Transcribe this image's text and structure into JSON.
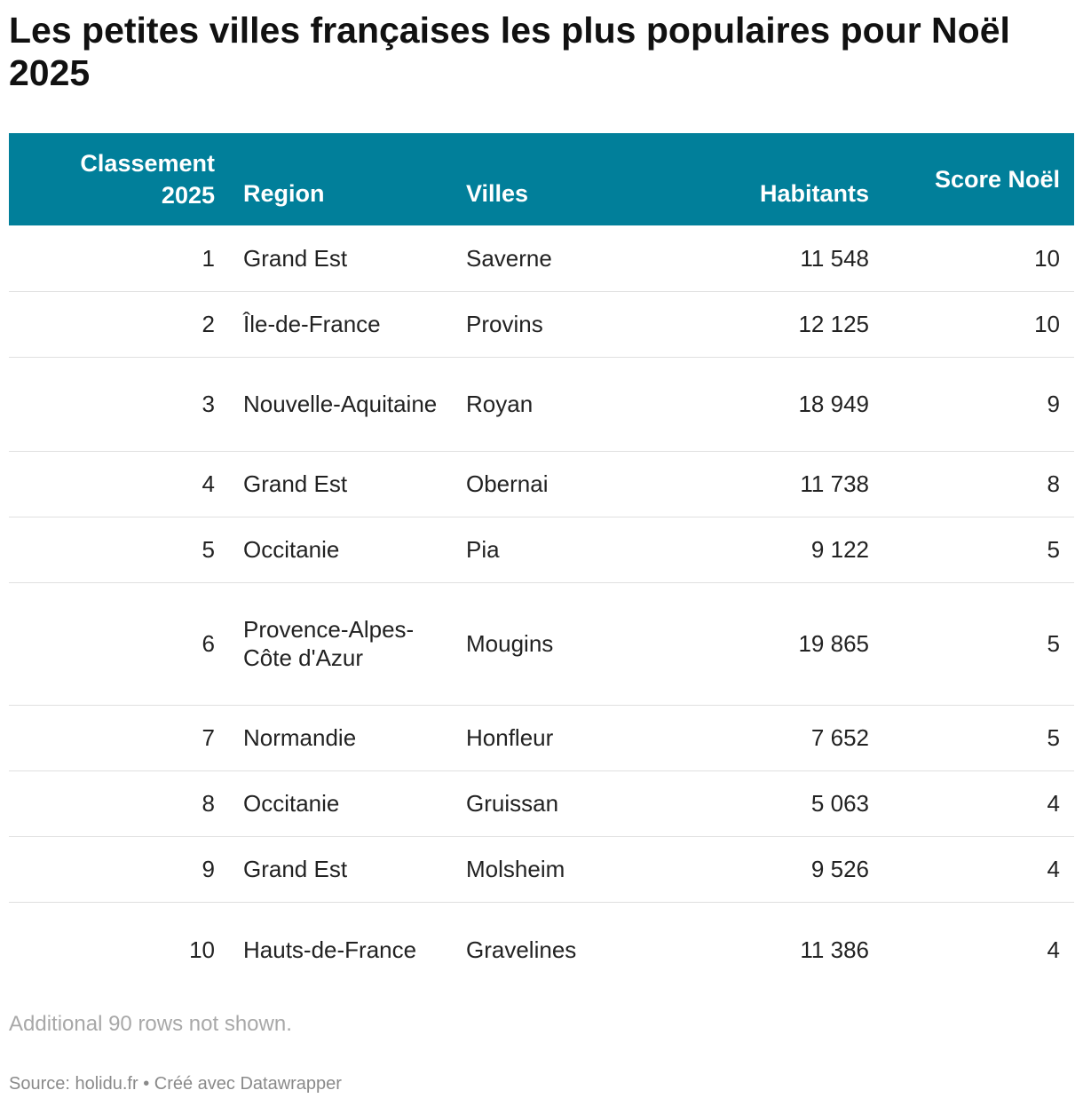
{
  "title": "Les petites villes françaises les plus populaires pour Noël 2025",
  "chart_data": {
    "type": "table",
    "title": "Les petites villes françaises les plus populaires pour Noël 2025",
    "columns": [
      "Classement 2025",
      "Region",
      "Villes",
      "Habitants",
      "Score Noël"
    ],
    "rows": [
      [
        "1",
        "Grand Est",
        "Saverne",
        "11 548",
        "10"
      ],
      [
        "2",
        "Île-de-France",
        "Provins",
        "12 125",
        "10"
      ],
      [
        "3",
        "Nouvelle-Aquitaine",
        "Royan",
        "18 949",
        "9"
      ],
      [
        "4",
        "Grand Est",
        "Obernai",
        "11 738",
        "8"
      ],
      [
        "5",
        "Occitanie",
        "Pia",
        "9 122",
        "5"
      ],
      [
        "6",
        "Provence-Alpes-Côte d'Azur",
        "Mougins",
        "19 865",
        "5"
      ],
      [
        "7",
        "Normandie",
        "Honfleur",
        "7 652",
        "5"
      ],
      [
        "8",
        "Occitanie",
        "Gruissan",
        "5 063",
        "4"
      ],
      [
        "9",
        "Grand Est",
        "Molsheim",
        "9 526",
        "4"
      ],
      [
        "10",
        "Hauts-de-France",
        "Gravelines",
        "11 386",
        "4"
      ]
    ],
    "header_color": "#017f9a"
  },
  "note": "Additional 90 rows not shown.",
  "source": "Source: holidu.fr • Créé avec Datawrapper"
}
